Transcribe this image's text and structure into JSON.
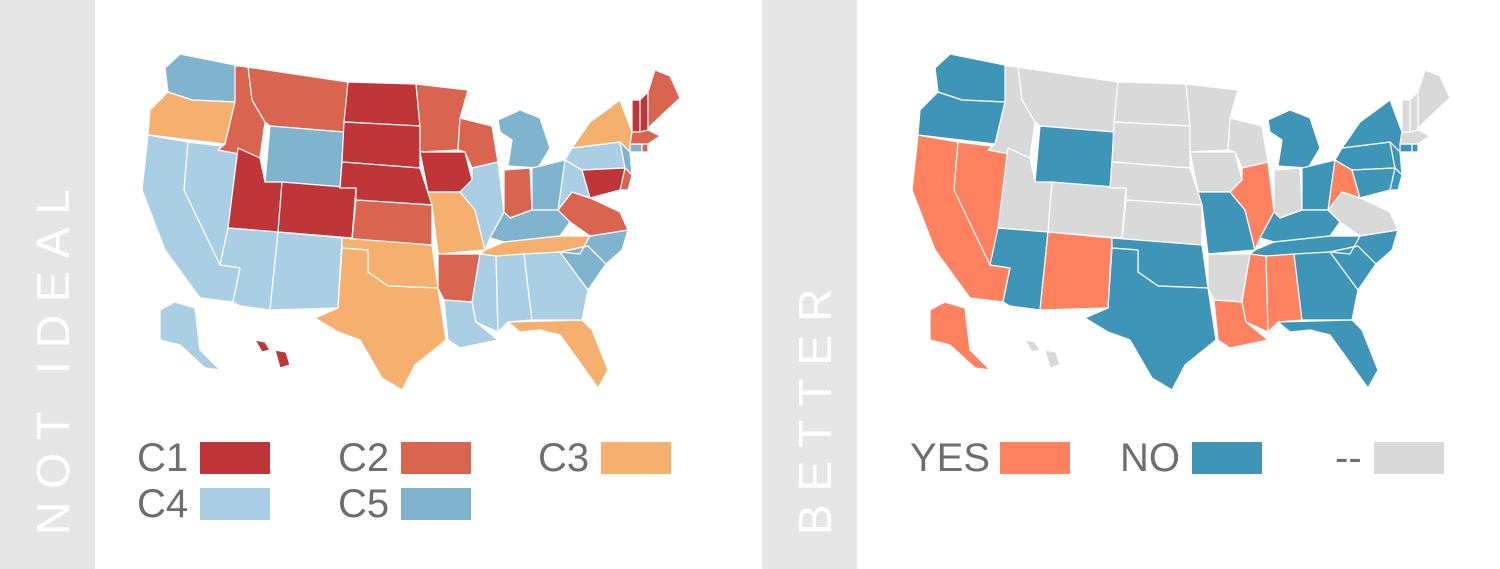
{
  "panels": {
    "left": {
      "label": "NOT IDEAL"
    },
    "right": {
      "label": "BETTER"
    }
  },
  "colors": {
    "C1": "#c03638",
    "C2": "#d96450",
    "C3": "#f5b070",
    "C4": "#aacfe5",
    "C5": "#80b4ce",
    "YES": "#fe8260",
    "NO": "#3f95b7",
    "NA": "#d9d9d9"
  },
  "legend_left": [
    {
      "label": "C1",
      "color": "#c03638"
    },
    {
      "label": "C2",
      "color": "#d96450"
    },
    {
      "label": "C3",
      "color": "#f5b070"
    },
    {
      "label": "C4",
      "color": "#aacfe5"
    },
    {
      "label": "C5",
      "color": "#80b4ce"
    }
  ],
  "legend_right": [
    {
      "label": "YES",
      "color": "#fe8260"
    },
    {
      "label": "NO",
      "color": "#3f95b7"
    },
    {
      "label": "--",
      "color": "#d9d9d9"
    }
  ],
  "states": [
    {
      "code": "WA",
      "left": "C5",
      "right": "NO"
    },
    {
      "code": "OR",
      "left": "C3",
      "right": "NO"
    },
    {
      "code": "CA",
      "left": "C4",
      "right": "YES"
    },
    {
      "code": "NV",
      "left": "C4",
      "right": "YES"
    },
    {
      "code": "ID",
      "left": "C2",
      "right": "NA"
    },
    {
      "code": "MT",
      "left": "C2",
      "right": "NA"
    },
    {
      "code": "WY",
      "left": "C5",
      "right": "NO"
    },
    {
      "code": "UT",
      "left": "C1",
      "right": "NA"
    },
    {
      "code": "AZ",
      "left": "C4",
      "right": "NO"
    },
    {
      "code": "CO",
      "left": "C1",
      "right": "NA"
    },
    {
      "code": "NM",
      "left": "C4",
      "right": "YES"
    },
    {
      "code": "ND",
      "left": "C1",
      "right": "NA"
    },
    {
      "code": "SD",
      "left": "C1",
      "right": "NA"
    },
    {
      "code": "NE",
      "left": "C1",
      "right": "NA"
    },
    {
      "code": "KS",
      "left": "C2",
      "right": "NA"
    },
    {
      "code": "OK",
      "left": "C3",
      "right": "NO"
    },
    {
      "code": "TX",
      "left": "C3",
      "right": "NO"
    },
    {
      "code": "MN",
      "left": "C2",
      "right": "NA"
    },
    {
      "code": "IA",
      "left": "C1",
      "right": "NA"
    },
    {
      "code": "MO",
      "left": "C3",
      "right": "NO"
    },
    {
      "code": "AR",
      "left": "C2",
      "right": "NA"
    },
    {
      "code": "LA",
      "left": "C4",
      "right": "YES"
    },
    {
      "code": "WI",
      "left": "C2",
      "right": "NA"
    },
    {
      "code": "IL",
      "left": "C4",
      "right": "YES"
    },
    {
      "code": "MI",
      "left": "C5",
      "right": "NO"
    },
    {
      "code": "IN",
      "left": "C2",
      "right": "NA"
    },
    {
      "code": "OH",
      "left": "C5",
      "right": "NO"
    },
    {
      "code": "KY",
      "left": "C5",
      "right": "NO"
    },
    {
      "code": "TN",
      "left": "C3",
      "right": "NO"
    },
    {
      "code": "MS",
      "left": "C4",
      "right": "YES"
    },
    {
      "code": "AL",
      "left": "C4",
      "right": "YES"
    },
    {
      "code": "GA",
      "left": "C4",
      "right": "NO"
    },
    {
      "code": "FL",
      "left": "C3",
      "right": "NO"
    },
    {
      "code": "SC",
      "left": "C5",
      "right": "NO"
    },
    {
      "code": "NC",
      "left": "C5",
      "right": "NO"
    },
    {
      "code": "VA",
      "left": "C2",
      "right": "NA"
    },
    {
      "code": "WV",
      "left": "C4",
      "right": "YES"
    },
    {
      "code": "PA",
      "left": "C4",
      "right": "NO"
    },
    {
      "code": "NY",
      "left": "C3",
      "right": "NO"
    },
    {
      "code": "NJ",
      "left": "C5",
      "right": "NO"
    },
    {
      "code": "DE",
      "left": "C2",
      "right": "NO"
    },
    {
      "code": "MD",
      "left": "C1",
      "right": "NO"
    },
    {
      "code": "CT",
      "left": "C5",
      "right": "NO"
    },
    {
      "code": "RI",
      "left": "C2",
      "right": "NO"
    },
    {
      "code": "MA",
      "left": "C2",
      "right": "NA"
    },
    {
      "code": "VT",
      "left": "C1",
      "right": "NA"
    },
    {
      "code": "NH",
      "left": "C1",
      "right": "NA"
    },
    {
      "code": "ME",
      "left": "C2",
      "right": "NA"
    },
    {
      "code": "AK",
      "left": "C4",
      "right": "YES"
    },
    {
      "code": "HI",
      "left": "C1",
      "right": "NA"
    }
  ]
}
